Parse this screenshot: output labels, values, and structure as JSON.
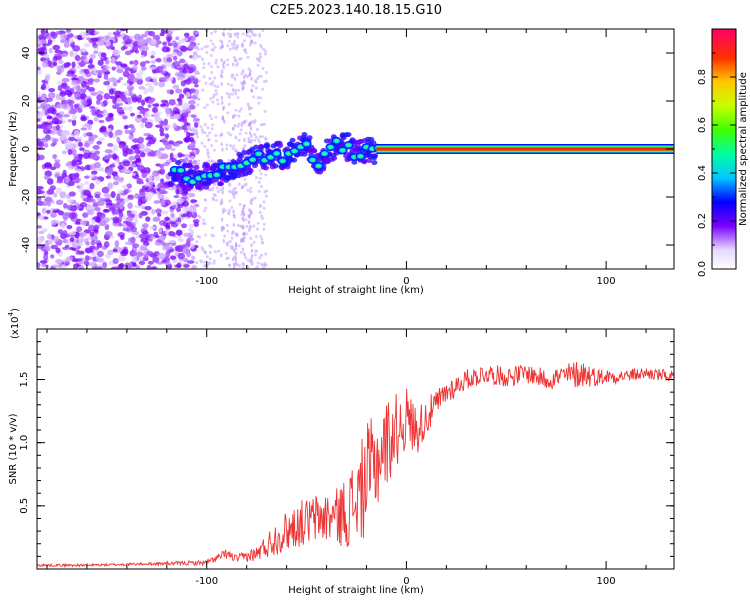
{
  "title": "C2E5.2023.140.18.15.G10",
  "chart_data": [
    {
      "type": "heatmap",
      "name": "spectrogram",
      "xlabel": "Height of straight line (km)",
      "ylabel": "Frequency (Hz)",
      "xlim": [
        -185,
        134
      ],
      "ylim": [
        -50,
        50
      ],
      "xticks": [
        -100,
        0,
        100
      ],
      "yticks": [
        -40,
        -20,
        0,
        20,
        40
      ],
      "ridge": {
        "x": [
          -118,
          -105,
          -95,
          -85,
          -75,
          -65,
          -60,
          -55,
          -50,
          -45,
          -40,
          -35,
          -30,
          -25,
          -20,
          -15,
          -10,
          -5,
          0,
          10,
          20,
          40,
          60,
          80,
          100,
          120,
          134
        ],
        "y": [
          -10,
          -12,
          -10,
          -7,
          -4,
          -2,
          -4,
          0,
          2,
          -6,
          -2,
          2,
          1,
          -2,
          0,
          -1,
          0,
          0,
          0,
          0,
          0,
          0,
          0,
          0,
          0,
          0,
          0
        ]
      },
      "colorbar": {
        "label": "Normalized spectral amplitude",
        "range": [
          0,
          1
        ],
        "ticks": [
          0.0,
          0.2,
          0.4,
          0.6,
          0.8
        ],
        "tick_labels": [
          "0.0",
          "0.2",
          "0.4",
          "0.6",
          "0.8"
        ]
      }
    },
    {
      "type": "line",
      "name": "snr",
      "xlabel": "Height of straight line (km)",
      "ylabel": "SNR (10 * v/v)",
      "scale_label": "(x10",
      "scale_exp": "4",
      "xlim": [
        -185,
        134
      ],
      "ylim": [
        0,
        1.9
      ],
      "xticks": [
        -100,
        0,
        100
      ],
      "yticks": [
        0.5,
        1.0,
        1.5
      ],
      "ytick_labels": [
        "0.5",
        "1.0",
        "1.5"
      ],
      "series": [
        {
          "name": "SNR",
          "color": "#ee3333",
          "x": [
            -185,
            -160,
            -130,
            -100,
            -90,
            -85,
            -75,
            -65,
            -55,
            -45,
            -35,
            -30,
            -25,
            -20,
            -15,
            -10,
            -5,
            0,
            5,
            10,
            15,
            20,
            30,
            40,
            50,
            60,
            70,
            80,
            88,
            95,
            110,
            120,
            134
          ],
          "y": [
            0.03,
            0.03,
            0.04,
            0.05,
            0.12,
            0.08,
            0.12,
            0.25,
            0.35,
            0.4,
            0.42,
            0.45,
            0.55,
            0.7,
            0.85,
            1.0,
            1.1,
            1.2,
            1.1,
            1.2,
            1.3,
            1.4,
            1.5,
            1.55,
            1.52,
            1.55,
            1.5,
            1.53,
            1.55,
            1.52,
            1.53,
            1.55,
            1.52
          ],
          "noise": [
            0.01,
            0.01,
            0.01,
            0.02,
            0.04,
            0.03,
            0.06,
            0.14,
            0.18,
            0.2,
            0.22,
            0.3,
            0.35,
            0.45,
            0.4,
            0.35,
            0.3,
            0.25,
            0.2,
            0.15,
            0.12,
            0.1,
            0.08,
            0.08,
            0.08,
            0.08,
            0.08,
            0.1,
            0.12,
            0.07,
            0.05,
            0.05,
            0.05
          ]
        }
      ]
    }
  ]
}
